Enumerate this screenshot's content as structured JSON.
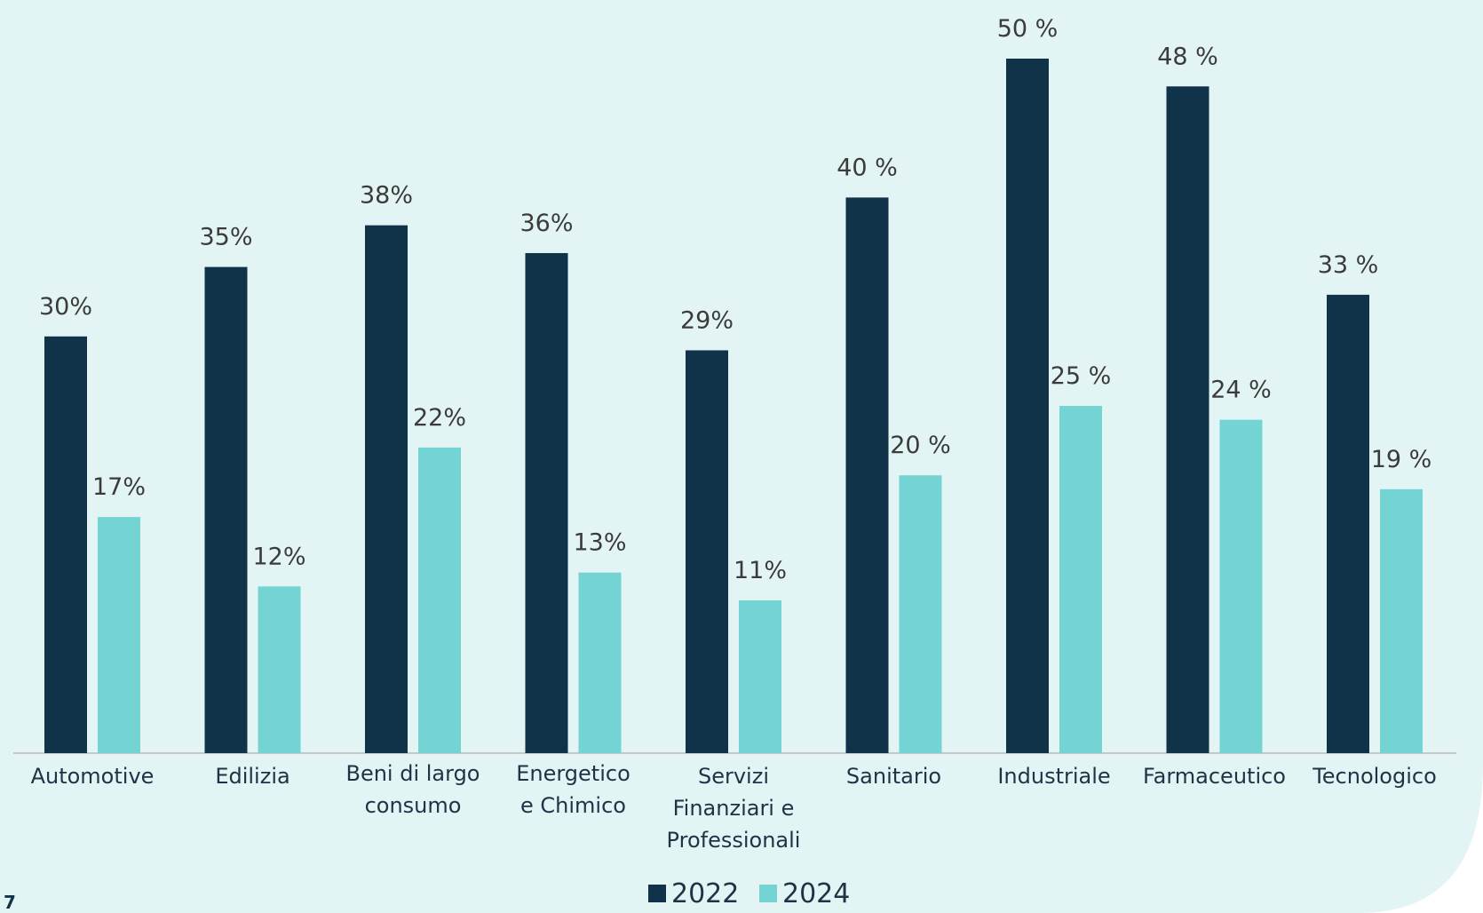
{
  "page_number": "7",
  "colors": {
    "panel": "#e2f5f4",
    "series_2022": "#10334a",
    "series_2024": "#73d4d3",
    "axis": "#c7c7c7"
  },
  "chart_data": {
    "type": "bar",
    "categories": [
      [
        "Automotive"
      ],
      [
        "Edilizia"
      ],
      [
        "Beni di largo",
        "consumo"
      ],
      [
        "Energetico",
        "e Chimico"
      ],
      [
        "Servizi",
        "Finanziari e",
        "Professionali"
      ],
      [
        "Sanitario"
      ],
      [
        "Industriale"
      ],
      [
        "Farmaceutico"
      ],
      [
        "Tecnologico"
      ]
    ],
    "series": [
      {
        "name": "2022",
        "values": [
          30,
          35,
          38,
          36,
          29,
          40,
          50,
          48,
          33
        ],
        "labels": [
          "30%",
          "35%",
          "38%",
          "36%",
          "29%",
          "40 %",
          "50 %",
          "48 %",
          "33 %"
        ]
      },
      {
        "name": "2024",
        "values": [
          17,
          12,
          22,
          13,
          11,
          20,
          25,
          24,
          19
        ],
        "labels": [
          "17%",
          "12%",
          "22%",
          "13%",
          "11%",
          "20 %",
          "25 %",
          "24 %",
          "19 %"
        ]
      }
    ],
    "ylim": [
      0,
      50
    ],
    "grid": false,
    "legend": "bottom-center"
  }
}
